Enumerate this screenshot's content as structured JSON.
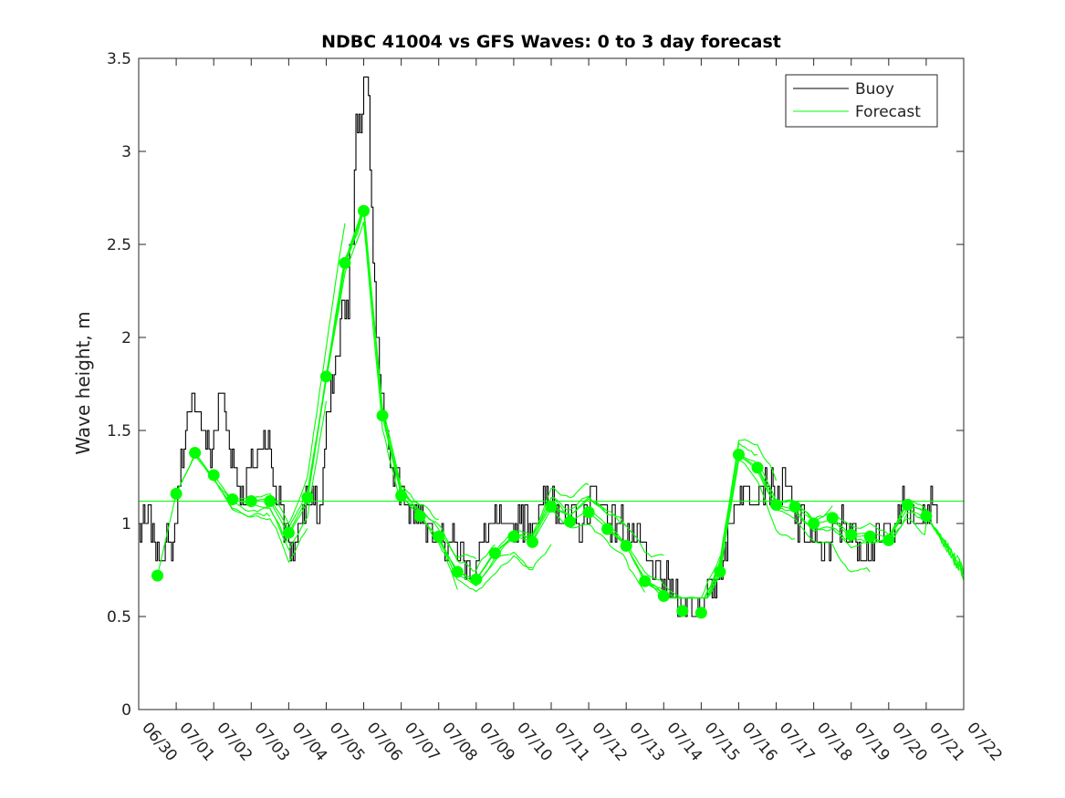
{
  "chart_data": {
    "type": "line",
    "title": "NDBC 41004 vs GFS Waves: 0 to 3 day forecast",
    "xlabel": "",
    "ylabel": "Wave height, m",
    "xlim": [
      0,
      22
    ],
    "ylim": [
      0,
      3.5
    ],
    "x_unit": "days since 06/30",
    "xticks": [
      0,
      1,
      2,
      3,
      4,
      5,
      6,
      7,
      8,
      9,
      10,
      11,
      12,
      13,
      14,
      15,
      16,
      17,
      18,
      19,
      20,
      21,
      22
    ],
    "xticklabels": [
      "06/30",
      "07/01",
      "07/02",
      "07/03",
      "07/04",
      "07/05",
      "07/06",
      "07/07",
      "07/08",
      "07/09",
      "07/10",
      "07/11",
      "07/12",
      "07/13",
      "07/14",
      "07/15",
      "07/16",
      "07/17",
      "07/18",
      "07/19",
      "07/20",
      "07/21",
      "07/22"
    ],
    "yticks": [
      0,
      0.5,
      1,
      1.5,
      2,
      2.5,
      3,
      3.5
    ],
    "yticklabels": [
      "0",
      "0.5",
      "1",
      "1.5",
      "2",
      "2.5",
      "3",
      "3.5"
    ],
    "grid": false,
    "legend": {
      "position": "top-right",
      "entries": [
        "Buoy",
        "Forecast"
      ]
    },
    "colors": {
      "buoy": "#000000",
      "forecast": "#00ff00"
    },
    "reference_line": {
      "y": 1.12,
      "color": "#00ff00"
    },
    "buoy_anchors": [
      [
        0,
        0.95
      ],
      [
        0.3,
        1.0
      ],
      [
        0.5,
        0.85
      ],
      [
        0.7,
        0.9
      ],
      [
        0.9,
        0.85
      ],
      [
        1.0,
        1.1
      ],
      [
        1.2,
        1.45
      ],
      [
        1.4,
        1.6
      ],
      [
        1.5,
        1.7
      ],
      [
        1.7,
        1.5
      ],
      [
        1.9,
        1.35
      ],
      [
        2.0,
        1.5
      ],
      [
        2.1,
        1.6
      ],
      [
        2.2,
        1.7
      ],
      [
        2.35,
        1.5
      ],
      [
        2.5,
        1.35
      ],
      [
        2.7,
        1.2
      ],
      [
        2.8,
        1.15
      ],
      [
        3.0,
        1.3
      ],
      [
        3.2,
        1.4
      ],
      [
        3.4,
        1.45
      ],
      [
        3.5,
        1.4
      ],
      [
        3.6,
        1.2
      ],
      [
        3.8,
        1.1
      ],
      [
        3.9,
        0.95
      ],
      [
        4.0,
        0.9
      ],
      [
        4.1,
        0.85
      ],
      [
        4.2,
        0.95
      ],
      [
        4.4,
        1.1
      ],
      [
        4.6,
        1.1
      ],
      [
        4.8,
        1.05
      ],
      [
        4.9,
        1.2
      ],
      [
        5.0,
        1.5
      ],
      [
        5.1,
        1.65
      ],
      [
        5.2,
        1.8
      ],
      [
        5.3,
        1.9
      ],
      [
        5.4,
        2.1
      ],
      [
        5.5,
        2.2
      ],
      [
        5.6,
        2.35
      ],
      [
        5.7,
        2.6
      ],
      [
        5.8,
        3.0
      ],
      [
        5.9,
        3.2
      ],
      [
        6.0,
        3.4
      ],
      [
        6.1,
        3.35
      ],
      [
        6.2,
        2.7
      ],
      [
        6.3,
        2.2
      ],
      [
        6.4,
        1.8
      ],
      [
        6.5,
        1.6
      ],
      [
        6.6,
        1.5
      ],
      [
        6.8,
        1.3
      ],
      [
        7.0,
        1.2
      ],
      [
        7.2,
        1.1
      ],
      [
        7.5,
        1.05
      ],
      [
        7.8,
        1.0
      ],
      [
        8.0,
        0.95
      ],
      [
        8.2,
        0.9
      ],
      [
        8.5,
        0.85
      ],
      [
        8.7,
        0.8
      ],
      [
        8.9,
        0.75
      ],
      [
        9.0,
        0.8
      ],
      [
        9.2,
        0.9
      ],
      [
        9.4,
        1.0
      ],
      [
        9.6,
        1.0
      ],
      [
        9.8,
        0.95
      ],
      [
        10.0,
        1.0
      ],
      [
        10.2,
        1.05
      ],
      [
        10.4,
        1.0
      ],
      [
        10.6,
        1.05
      ],
      [
        10.8,
        1.1
      ],
      [
        11.0,
        1.15
      ],
      [
        11.2,
        1.1
      ],
      [
        11.4,
        1.05
      ],
      [
        11.6,
        1.0
      ],
      [
        11.8,
        1.0
      ],
      [
        12.0,
        1.1
      ],
      [
        12.2,
        1.15
      ],
      [
        12.4,
        1.1
      ],
      [
        12.6,
        1.0
      ],
      [
        12.8,
        1.0
      ],
      [
        13.0,
        0.95
      ],
      [
        13.2,
        0.9
      ],
      [
        13.4,
        0.85
      ],
      [
        13.6,
        0.8
      ],
      [
        13.8,
        0.75
      ],
      [
        14.0,
        0.7
      ],
      [
        14.2,
        0.65
      ],
      [
        14.4,
        0.6
      ],
      [
        14.6,
        0.55
      ],
      [
        14.8,
        0.55
      ],
      [
        15.0,
        0.55
      ],
      [
        15.2,
        0.6
      ],
      [
        15.4,
        0.7
      ],
      [
        15.6,
        0.85
      ],
      [
        15.8,
        1.0
      ],
      [
        16.0,
        1.2
      ],
      [
        16.2,
        1.15
      ],
      [
        16.4,
        1.2
      ],
      [
        16.6,
        1.25
      ],
      [
        16.8,
        1.2
      ],
      [
        17.0,
        1.15
      ],
      [
        17.2,
        1.2
      ],
      [
        17.4,
        1.1
      ],
      [
        17.6,
        1.0
      ],
      [
        17.8,
        0.95
      ],
      [
        18.0,
        0.9
      ],
      [
        18.2,
        0.85
      ],
      [
        18.4,
        0.9
      ],
      [
        18.6,
        0.95
      ],
      [
        18.8,
        1.0
      ],
      [
        19.0,
        0.95
      ],
      [
        19.2,
        0.9
      ],
      [
        19.4,
        0.85
      ],
      [
        19.6,
        0.85
      ],
      [
        19.8,
        0.9
      ],
      [
        20.0,
        0.95
      ],
      [
        20.2,
        1.0
      ],
      [
        20.4,
        1.1
      ],
      [
        20.6,
        1.05
      ],
      [
        20.8,
        1.0
      ],
      [
        21.0,
        1.05
      ],
      [
        21.2,
        1.1
      ],
      [
        21.3,
        1.05
      ]
    ],
    "forecast_points": [
      [
        0.5,
        0.72
      ],
      [
        1.0,
        1.16
      ],
      [
        1.5,
        1.38
      ],
      [
        2.0,
        1.26
      ],
      [
        2.5,
        1.13
      ],
      [
        3.0,
        1.12
      ],
      [
        3.5,
        1.12
      ],
      [
        4.0,
        0.95
      ],
      [
        4.5,
        1.14
      ],
      [
        5.0,
        1.79
      ],
      [
        5.5,
        2.4
      ],
      [
        6.0,
        2.68
      ],
      [
        6.5,
        1.58
      ],
      [
        7.0,
        1.15
      ],
      [
        7.5,
        1.04
      ],
      [
        8.0,
        0.93
      ],
      [
        8.5,
        0.74
      ],
      [
        9.0,
        0.7
      ],
      [
        9.5,
        0.84
      ],
      [
        10.0,
        0.93
      ],
      [
        10.5,
        0.9
      ],
      [
        11.0,
        1.09
      ],
      [
        11.5,
        1.01
      ],
      [
        12.0,
        1.06
      ],
      [
        12.5,
        0.97
      ],
      [
        13.0,
        0.88
      ],
      [
        13.5,
        0.69
      ],
      [
        14.0,
        0.61
      ],
      [
        14.5,
        0.53
      ],
      [
        15.0,
        0.52
      ],
      [
        15.5,
        0.74
      ],
      [
        16.0,
        1.37
      ],
      [
        16.5,
        1.3
      ],
      [
        17.0,
        1.1
      ],
      [
        17.5,
        1.09
      ],
      [
        18.0,
        1.0
      ],
      [
        18.5,
        1.03
      ],
      [
        19.0,
        0.94
      ],
      [
        19.5,
        0.93
      ],
      [
        20.0,
        0.91
      ],
      [
        20.5,
        1.1
      ],
      [
        21.0,
        1.04
      ]
    ],
    "forecast_runs": 12
  }
}
